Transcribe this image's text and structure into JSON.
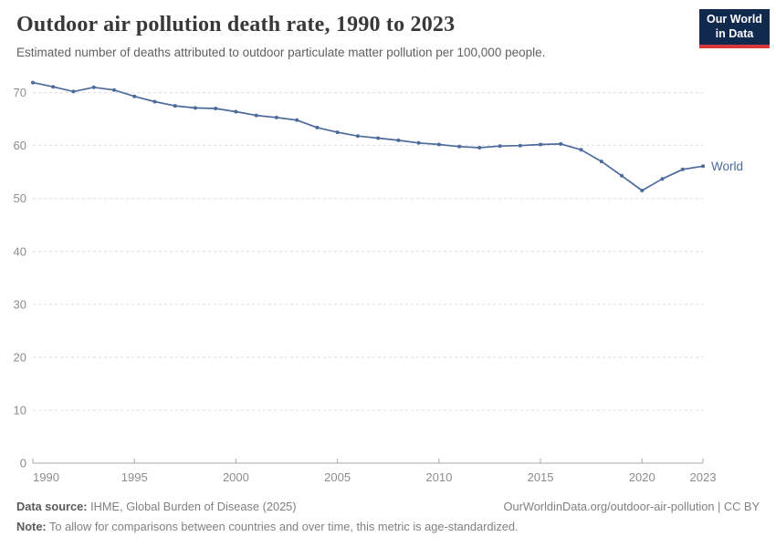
{
  "header": {
    "title": "Outdoor air pollution death rate, 1990 to 2023",
    "subtitle": "Estimated number of deaths attributed to outdoor particulate matter pollution per 100,000 people."
  },
  "logo": {
    "line1": "Our World",
    "line2": "in Data"
  },
  "colors": {
    "line": "#4c6a9c",
    "marker": "#4c6a9c",
    "series_label": "#4c6a9c",
    "gridline": "#dcdcdc",
    "axis": "#a8a8a8",
    "tick_label": "#8c8c8c",
    "title": "#383838",
    "subtitle": "#5f5f5f",
    "logo_bg": "#12294e",
    "logo_red": "#d8383a"
  },
  "chart_data": {
    "type": "line",
    "title": "Outdoor air pollution death rate, 1990 to 2023",
    "subtitle": "Estimated number of deaths attributed to outdoor particulate matter pollution per 100,000 people.",
    "xlabel": "",
    "ylabel": "",
    "xlim": [
      1990,
      2023
    ],
    "ylim": [
      0,
      74
    ],
    "grid": "horizontal-dashed",
    "legend_position": "end-of-line",
    "x_ticks": [
      1990,
      1995,
      2000,
      2005,
      2010,
      2015,
      2020,
      2023
    ],
    "y_ticks": [
      0,
      10,
      20,
      30,
      40,
      50,
      60,
      70
    ],
    "series": [
      {
        "name": "World",
        "x": [
          1990,
          1991,
          1992,
          1993,
          1994,
          1995,
          1996,
          1997,
          1998,
          1999,
          2000,
          2001,
          2002,
          2003,
          2004,
          2005,
          2006,
          2007,
          2008,
          2009,
          2010,
          2011,
          2012,
          2013,
          2014,
          2015,
          2016,
          2017,
          2018,
          2019,
          2020,
          2021,
          2022,
          2023
        ],
        "values": [
          71.9,
          71.1,
          70.2,
          71.0,
          70.5,
          69.3,
          68.3,
          67.5,
          67.1,
          67.0,
          66.4,
          65.7,
          65.3,
          64.8,
          63.4,
          62.5,
          61.8,
          61.4,
          61.0,
          60.5,
          60.2,
          59.8,
          59.6,
          59.9,
          60.0,
          60.2,
          60.3,
          59.2,
          57.0,
          54.3,
          51.5,
          53.7,
          55.5,
          56.1
        ]
      }
    ]
  },
  "footer": {
    "datasource_label": "Data source:",
    "datasource_value": " IHME, Global Burden of Disease (2025)",
    "rights": "OurWorldinData.org/outdoor-air-pollution | CC BY",
    "note_label": "Note:",
    "note_value": " To allow for comparisons between countries and over time, this metric is age-standardized."
  }
}
